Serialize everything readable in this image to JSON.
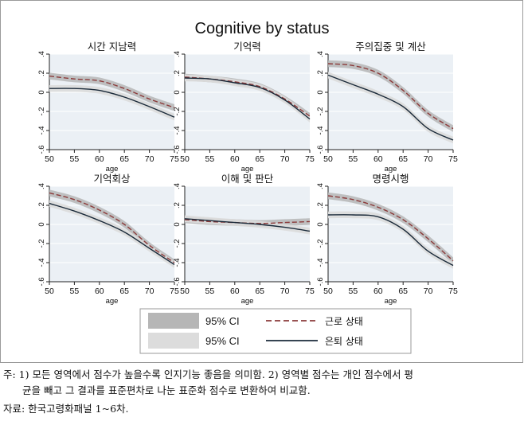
{
  "figure": {
    "title": "Cognitive by status",
    "xlabel": "age",
    "yticks": [
      ".4",
      ".2",
      "0",
      "-.2",
      "-.4",
      "-.6"
    ],
    "xticks": [
      "50",
      "55",
      "60",
      "65",
      "70",
      "75"
    ]
  },
  "legend": {
    "band1_label": "95% CI",
    "band2_label": "95% CI",
    "working_label": "근로 상태",
    "retired_label": "은퇴 상태",
    "colors": {
      "band_dark": "#b6b6b6",
      "band_light": "#dcdcdc",
      "working": "#8b3a3a",
      "retired": "#1a2a3a",
      "plot_bg": "#ebf0f5"
    }
  },
  "notes": {
    "line1": "주: 1) 모든 영역에서 점수가 높을수록 인지기능 좋음을 의미함. 2) 영역별 점수는 개인 점수에서 평",
    "line2": "균을 빼고 그 결과를 표준편차로 나눈 표준화 점수로 변환하여 비교함.",
    "line3": "자료: 한국고령화패널 1~6차."
  },
  "chart_data": [
    {
      "type": "line",
      "title": "시간 지남력",
      "xlabel": "age",
      "xlim": [
        50,
        75
      ],
      "ylim": [
        -0.6,
        0.4
      ],
      "x": [
        50,
        55,
        60,
        65,
        70,
        75
      ],
      "series": [
        {
          "name": "근로 상태",
          "values": [
            0.17,
            0.14,
            0.12,
            0.04,
            -0.07,
            -0.16
          ]
        },
        {
          "name": "은퇴 상태",
          "values": [
            0.04,
            0.04,
            0.02,
            -0.05,
            -0.15,
            -0.26
          ]
        }
      ]
    },
    {
      "type": "line",
      "title": "기억력",
      "xlabel": "age",
      "xlim": [
        50,
        75
      ],
      "ylim": [
        -0.6,
        0.4
      ],
      "x": [
        50,
        55,
        60,
        65,
        70,
        75
      ],
      "series": [
        {
          "name": "근로 상태",
          "values": [
            0.16,
            0.14,
            0.11,
            0.06,
            -0.07,
            -0.25
          ]
        },
        {
          "name": "은퇴 상태",
          "values": [
            0.15,
            0.14,
            0.1,
            0.05,
            -0.08,
            -0.28
          ]
        }
      ]
    },
    {
      "type": "line",
      "title": "주의집중 및 계산",
      "xlabel": "age",
      "xlim": [
        50,
        75
      ],
      "ylim": [
        -0.6,
        0.4
      ],
      "x": [
        50,
        55,
        60,
        65,
        70,
        75
      ],
      "series": [
        {
          "name": "근로 상태",
          "values": [
            0.3,
            0.28,
            0.2,
            0.02,
            -0.22,
            -0.38
          ]
        },
        {
          "name": "은퇴 상태",
          "values": [
            0.18,
            0.08,
            -0.02,
            -0.15,
            -0.38,
            -0.5
          ]
        }
      ]
    },
    {
      "type": "line",
      "title": "기억회상",
      "xlabel": "age",
      "xlim": [
        50,
        75
      ],
      "ylim": [
        -0.6,
        0.4
      ],
      "x": [
        50,
        55,
        60,
        65,
        70,
        75
      ],
      "series": [
        {
          "name": "근로 상태",
          "values": [
            0.33,
            0.26,
            0.15,
            0.0,
            -0.22,
            -0.4
          ]
        },
        {
          "name": "은퇴 상태",
          "values": [
            0.22,
            0.14,
            0.04,
            -0.08,
            -0.25,
            -0.42
          ]
        }
      ]
    },
    {
      "type": "line",
      "title": "이해 및 판단",
      "xlabel": "age",
      "xlim": [
        50,
        75
      ],
      "ylim": [
        -0.6,
        0.4
      ],
      "x": [
        50,
        55,
        60,
        65,
        70,
        75
      ],
      "series": [
        {
          "name": "근로 상태",
          "values": [
            0.05,
            0.03,
            0.02,
            0.01,
            0.02,
            0.03
          ]
        },
        {
          "name": "은퇴 상태",
          "values": [
            0.06,
            0.04,
            0.02,
            0.0,
            -0.03,
            -0.07
          ]
        }
      ]
    },
    {
      "type": "line",
      "title": "명령시행",
      "xlabel": "age",
      "xlim": [
        50,
        75
      ],
      "ylim": [
        -0.6,
        0.4
      ],
      "x": [
        50,
        55,
        60,
        65,
        70,
        75
      ],
      "series": [
        {
          "name": "근로 상태",
          "values": [
            0.3,
            0.26,
            0.18,
            0.05,
            -0.15,
            -0.38
          ]
        },
        {
          "name": "은퇴 상태",
          "values": [
            0.1,
            0.1,
            0.08,
            -0.05,
            -0.28,
            -0.43
          ]
        }
      ]
    }
  ]
}
